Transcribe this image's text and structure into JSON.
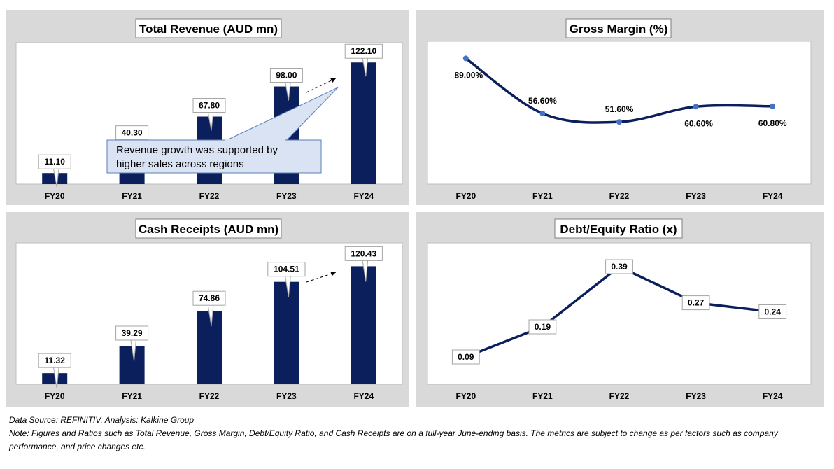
{
  "chart_data": [
    {
      "id": "revenue",
      "type": "bar",
      "title": "Total Revenue (AUD mn)",
      "categories": [
        "FY20",
        "FY21",
        "FY22",
        "FY23",
        "FY24"
      ],
      "values": [
        11.1,
        40.3,
        67.8,
        98.0,
        122.1
      ],
      "value_labels": [
        "11.10",
        "40.30",
        "67.80",
        "98.00",
        "122.10"
      ],
      "ylim": [
        0,
        130
      ],
      "bar_color": "#0b1f5c",
      "annotation": "Revenue growth was supported by higher sales across regions",
      "grid": false
    },
    {
      "id": "gross_margin",
      "type": "line",
      "title": "Gross Margin (%)",
      "categories": [
        "FY20",
        "FY21",
        "FY22",
        "FY23",
        "FY24"
      ],
      "values": [
        89.0,
        56.6,
        51.6,
        60.6,
        60.8
      ],
      "value_labels": [
        "89.00%",
        "56.60%",
        "51.60%",
        "60.60%",
        "60.80%"
      ],
      "ylim": [
        0,
        100
      ],
      "line_color": "#0b1f5c",
      "marker_color": "#4472c4",
      "smooth": true,
      "grid": false
    },
    {
      "id": "cash_receipts",
      "type": "bar",
      "title": "Cash Receipts (AUD mn)",
      "categories": [
        "FY20",
        "FY21",
        "FY22",
        "FY23",
        "FY24"
      ],
      "values": [
        11.32,
        39.29,
        74.86,
        104.51,
        120.43
      ],
      "value_labels": [
        "11.32",
        "39.29",
        "74.86",
        "104.51",
        "120.43"
      ],
      "ylim": [
        0,
        125
      ],
      "bar_color": "#0b1f5c",
      "grid": false
    },
    {
      "id": "debt_equity",
      "type": "line",
      "title": "Debt/Equity Ratio (x)",
      "categories": [
        "FY20",
        "FY21",
        "FY22",
        "FY23",
        "FY24"
      ],
      "values": [
        0.09,
        0.19,
        0.39,
        0.27,
        0.24
      ],
      "value_labels": [
        "0.09",
        "0.19",
        "0.39",
        "0.27",
        "0.24"
      ],
      "ylim": [
        0,
        0.4
      ],
      "line_color": "#0b1f5c",
      "grid": false
    }
  ],
  "footer": {
    "source": "Data Source: REFINITIV, Analysis: Kalkine Group",
    "note_line1": "Note: Figures and Ratios such as Total Revenue, Gross Margin, Debt/Equity Ratio, and Cash Receipts  are on a full-year June-ending basis. The metrics are subject to change as per factors such as company",
    "note_line2": "performance, and price changes etc."
  }
}
